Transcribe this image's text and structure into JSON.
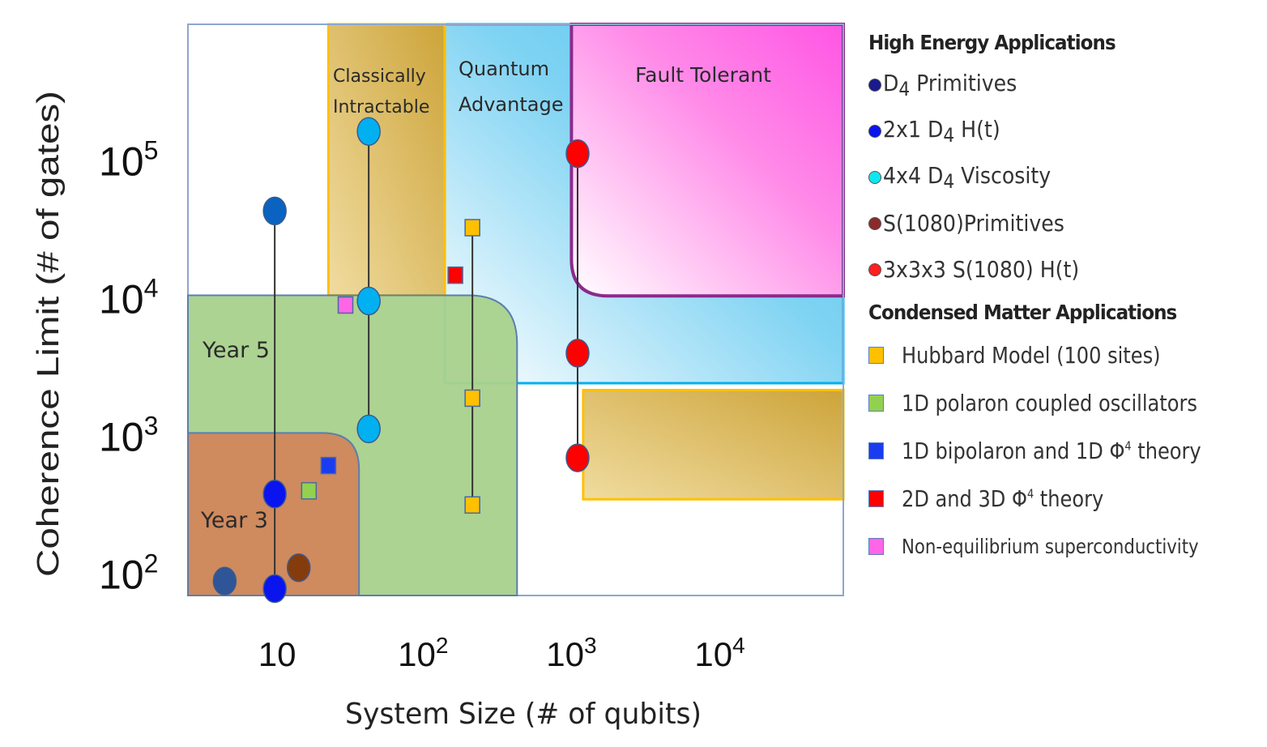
{
  "chart_data": {
    "type": "scatter",
    "title": "",
    "xlabel": "System Size (# of qubits)",
    "ylabel": "Coherence Limit (# of gates)",
    "xscale": "log",
    "yscale": "log",
    "xlim": [
      2.6,
      68000
    ],
    "ylim": [
      66,
      930000
    ],
    "xticks": [
      {
        "value": 10,
        "label": "10",
        "sup": ""
      },
      {
        "value": 100,
        "label": "10",
        "sup": "2"
      },
      {
        "value": 1000,
        "label": "10",
        "sup": "3"
      },
      {
        "value": 10000,
        "label": "10",
        "sup": "4"
      }
    ],
    "yticks": [
      {
        "value": 100,
        "label": "10",
        "sup": "2"
      },
      {
        "value": 1000,
        "label": "10",
        "sup": "3"
      },
      {
        "value": 10000,
        "label": "10",
        "sup": "4"
      },
      {
        "value": 100000,
        "label": "10",
        "sup": "5"
      }
    ],
    "grid": false,
    "legend_position": "right",
    "regions": [
      {
        "name": "Quantum Advantage",
        "label_lines": [
          "Quantum",
          "Advantage"
        ],
        "x": [
          140,
          68000
        ],
        "y": [
          2300,
          930000
        ],
        "color": "#5fcbf0",
        "border": "#00b0f0",
        "shape": "quantum"
      },
      {
        "name": "Classically Intractable",
        "label_lines": [
          "Classically",
          "Intractable"
        ],
        "x": [
          23,
          140
        ],
        "y": [
          10000,
          930000
        ],
        "x2": [
          1200,
          68000
        ],
        "y2": [
          330,
          2050
        ],
        "color": "#d4aa3c",
        "border": "#ffc000",
        "shape": "classical"
      },
      {
        "name": "Fault Tolerant",
        "label_lines": [
          "Fault Tolerant"
        ],
        "x": [
          1000,
          68000
        ],
        "y": [
          9900,
          930000
        ],
        "color": "#ff5ce6",
        "border": "#8b2a8b",
        "shape": "fault"
      },
      {
        "name": "Year 5",
        "label_lines": [
          "Year 5"
        ],
        "x": [
          2.6,
          430
        ],
        "y": [
          66,
          10000
        ],
        "color": "#a9d18e",
        "border": "#5a7fae",
        "shape": "year"
      },
      {
        "name": "Year 3",
        "label_lines": [
          "Year 3"
        ],
        "x": [
          2.6,
          37
        ],
        "y": [
          66,
          1000
        ],
        "color": "#cf8a5e",
        "border": "#5a7fae",
        "shape": "year"
      }
    ],
    "series": [
      {
        "name": "D4 Primitives",
        "group": "High Energy Applications",
        "marker": "circle",
        "color": "#1f3080",
        "points": [
          {
            "x": 4.6,
            "y": 84,
            "color": "#2e5597"
          },
          {
            "x": 10,
            "y": 41000,
            "color": "#0a63c0"
          }
        ],
        "connected": false
      },
      {
        "name": "2x1 D4 H(t)",
        "group": "High Energy Applications",
        "marker": "circle",
        "color": "#0a14ee",
        "points": [
          {
            "x": 10,
            "y": 74
          },
          {
            "x": 10,
            "y": 360
          }
        ],
        "connected": true,
        "line_to_y": 41000
      },
      {
        "name": "4x4 D4 Viscosity",
        "group": "High Energy Applications",
        "marker": "circle",
        "color": "#0fe7f0",
        "plot_color": "#00b0f0",
        "points": [
          {
            "x": 43,
            "y": 1070
          },
          {
            "x": 43,
            "y": 9100
          },
          {
            "x": 43,
            "y": 155000
          }
        ],
        "connected": true
      },
      {
        "name": "S(1080)Primitives",
        "group": "High Energy Applications",
        "marker": "circle",
        "color": "#8b2a2a",
        "plot_color": "#843c0c",
        "points": [
          {
            "x": 14.5,
            "y": 105
          }
        ],
        "connected": false
      },
      {
        "name": "3x3x3 S(1080) H(t)",
        "group": "High Energy Applications",
        "marker": "circle",
        "color": "#ff2020",
        "plot_color": "#ff0000",
        "points": [
          {
            "x": 1100,
            "y": 660
          },
          {
            "x": 1100,
            "y": 3800
          },
          {
            "x": 1100,
            "y": 107000
          }
        ],
        "connected": true
      },
      {
        "name": "Hubbard Model (100 sites)",
        "group": "Condensed Matter Applications",
        "marker": "square",
        "color": "#ffc000",
        "points": [
          {
            "x": 215,
            "y": 300
          },
          {
            "x": 215,
            "y": 1790
          },
          {
            "x": 215,
            "y": 31000
          }
        ],
        "connected": true
      },
      {
        "name": "1D polaron coupled oscillators",
        "group": "Condensed Matter Applications",
        "marker": "square",
        "color": "#92d050",
        "points": [
          {
            "x": 17,
            "y": 380
          }
        ],
        "connected": false
      },
      {
        "name": "1D bipolaron and 1D Φ4 theory",
        "group": "Condensed Matter Applications",
        "marker": "square",
        "color": "#1a3cf0",
        "points": [
          {
            "x": 23,
            "y": 580
          }
        ],
        "connected": false
      },
      {
        "name": "2D and 3D Φ4 theory",
        "group": "Condensed Matter Applications",
        "marker": "square",
        "color": "#ff0000",
        "points": [
          {
            "x": 165,
            "y": 14000
          }
        ],
        "connected": false
      },
      {
        "name": "Non-equilibrium superconductivity",
        "group": "Condensed Matter Applications",
        "marker": "square",
        "color": "#ff66e6",
        "points": [
          {
            "x": 30,
            "y": 8500
          }
        ],
        "connected": false
      }
    ]
  },
  "legend": {
    "high_energy_heading": "High Energy Applications",
    "high_energy_items": [
      {
        "pre": "",
        "sub": "D",
        "subscript": "4",
        "post": " Primitives",
        "text": "D4 Primitives",
        "color": "#1a1a8c"
      },
      {
        "pre": "2x1 ",
        "sub": "D",
        "subscript": "4",
        "post": " H(t)",
        "text": "2x1 D4 H(t)",
        "color": "#0a14ee"
      },
      {
        "pre": "4x4 ",
        "sub": "D",
        "subscript": "4",
        "post": " Viscosity",
        "text": "4x4 D4 Viscosity",
        "color": "#0fe7f0"
      },
      {
        "pre": "S(1080)Primitives",
        "sub": "",
        "subscript": "",
        "post": "",
        "text": "S(1080)Primitives",
        "color": "#8b2a2a"
      },
      {
        "pre": "3x3x3 S(1080) H(t)",
        "sub": "",
        "subscript": "",
        "post": "",
        "text": "3x3x3 S(1080) H(t)",
        "color": "#ff2020"
      }
    ],
    "condensed_heading": "Condensed Matter Applications",
    "condensed_items": [
      {
        "pre": "Hubbard Model (100 sites)",
        "sup": "",
        "post": "",
        "color": "#ffc000"
      },
      {
        "pre": "1D polaron coupled oscillators",
        "sup": "",
        "post": "",
        "color": "#92d050"
      },
      {
        "pre": "1D bipolaron and 1D Φ",
        "sup": "4",
        "post": " theory",
        "color": "#1a3cf0"
      },
      {
        "pre": "2D and 3D Φ",
        "sup": "4",
        "post": " theory",
        "color": "#ff0000"
      },
      {
        "pre": "Non-equilibrium superconductivity",
        "sup": "",
        "post": "",
        "color": "#ff66e6"
      }
    ]
  }
}
